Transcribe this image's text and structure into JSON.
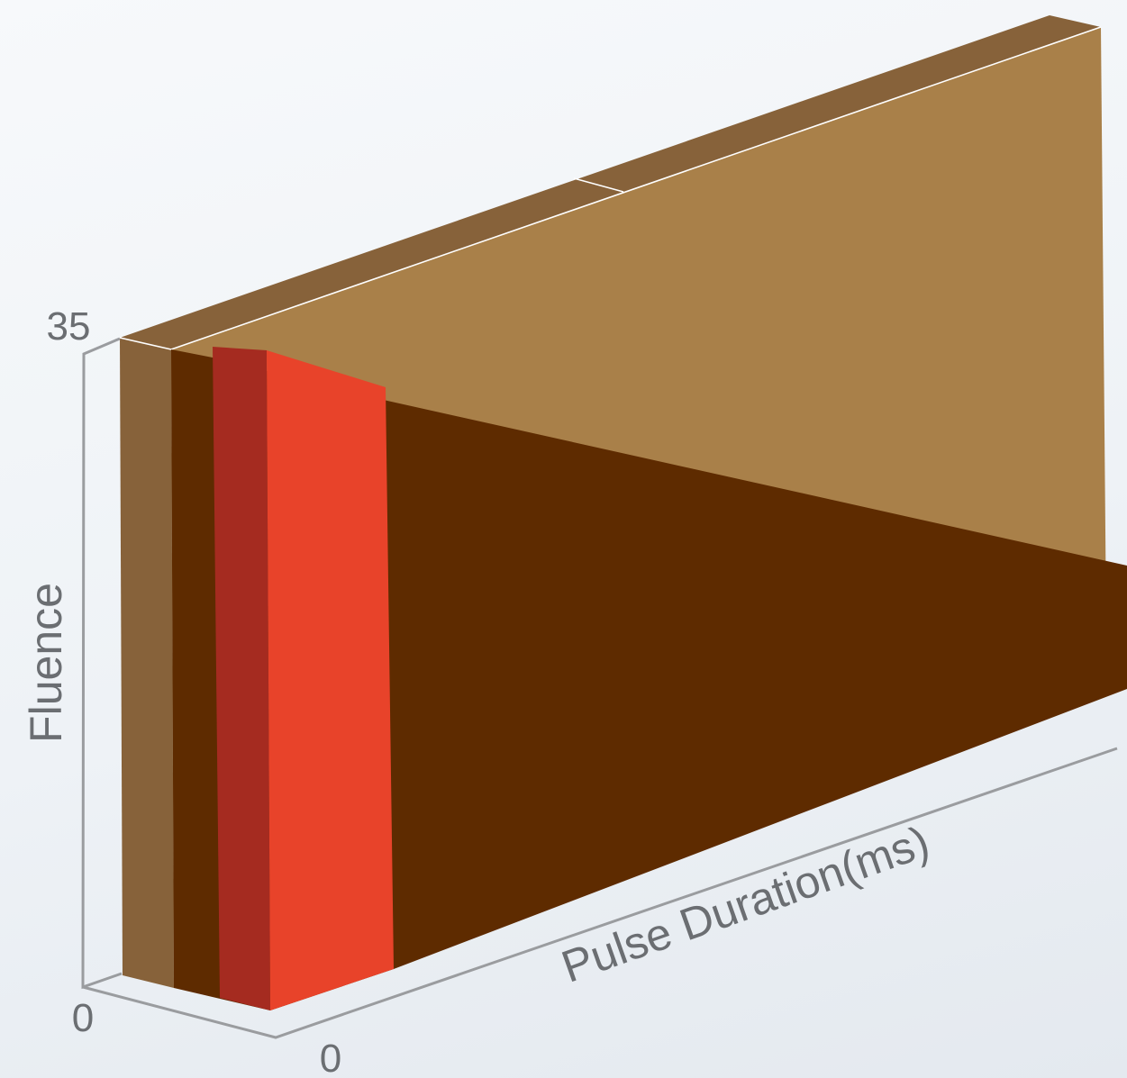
{
  "chart_data": {
    "type": "area",
    "view": "3d",
    "ylabel": "Fluence",
    "xlabel": "Pulse Duration(ms)",
    "y_ticks": [
      "0",
      "35"
    ],
    "x_ticks": [
      "0"
    ],
    "ylim": [
      0,
      35
    ],
    "series": [
      {
        "color": "#8a6337",
        "side_color": "#87623a",
        "top_color": "#8a6337",
        "x": [
          0,
          1
        ],
        "y": [
          35,
          35
        ],
        "layer": "back"
      },
      {
        "color": "#a98049",
        "side_color": "#5e2b00",
        "x": [
          0,
          1
        ],
        "y": [
          35,
          30
        ],
        "layer": "middle"
      },
      {
        "color": "#5e2b00",
        "side_color": "#a52b20",
        "x": [
          0,
          1
        ],
        "y": [
          34,
          16
        ],
        "layer": "front-dark"
      },
      {
        "color": "#e8432a",
        "side_color": "#a52b20",
        "x": [
          0,
          0.05
        ],
        "y": [
          34,
          31
        ],
        "layer": "front"
      }
    ],
    "grid": false,
    "legend": "none"
  }
}
